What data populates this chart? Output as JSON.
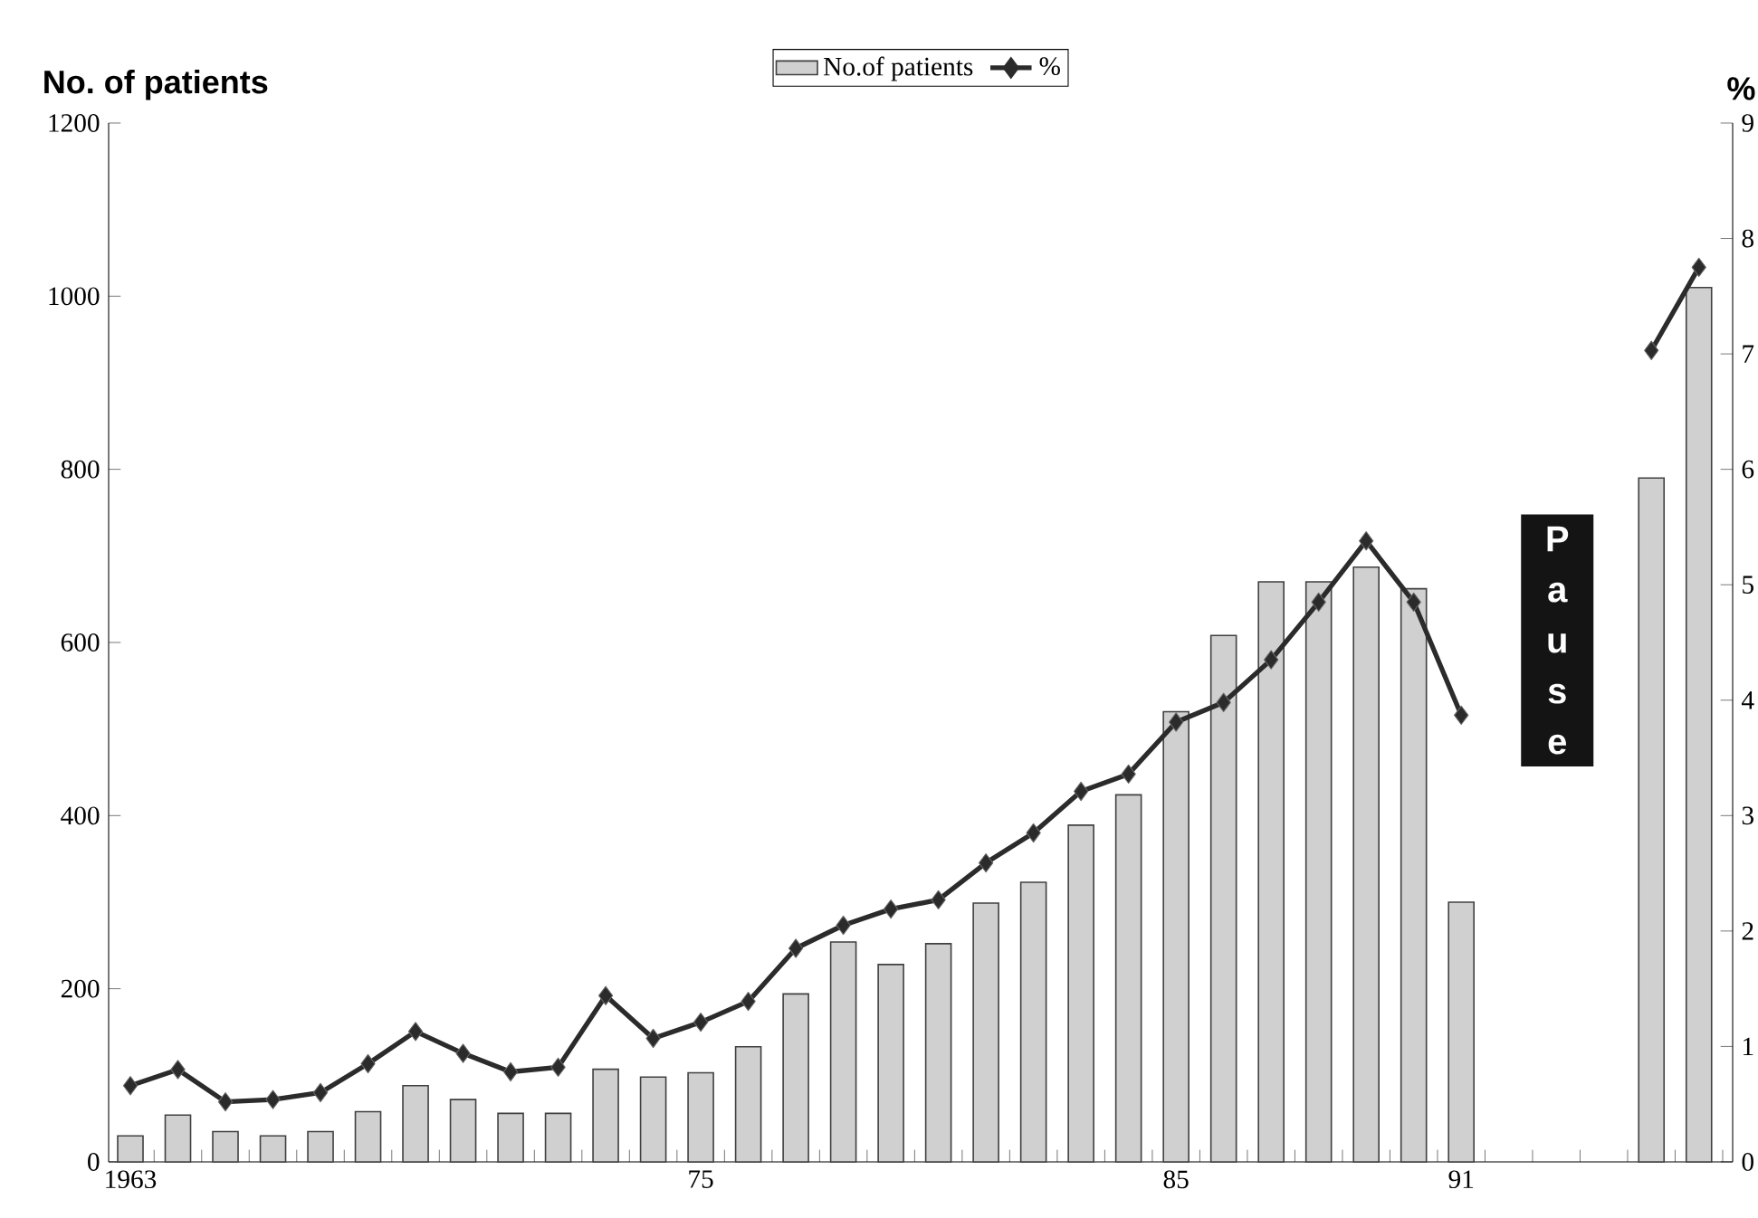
{
  "chart_data": {
    "type": "bar",
    "ylabel": "No. of patients",
    "y2label": "%",
    "categories": [
      "1963",
      null,
      null,
      null,
      null,
      null,
      null,
      null,
      null,
      null,
      null,
      null,
      "75",
      null,
      null,
      null,
      null,
      null,
      null,
      null,
      null,
      null,
      "85",
      null,
      null,
      null,
      null,
      null,
      "91",
      null,
      null,
      null,
      null,
      null
    ],
    "series": [
      {
        "name": "No.of patients",
        "color": "#d0d0d0",
        "values": [
          30,
          54,
          35,
          30,
          35,
          58,
          88,
          72,
          56,
          56,
          107,
          98,
          103,
          133,
          194,
          254,
          228,
          252,
          299,
          323,
          389,
          424,
          520,
          608,
          670,
          670,
          687,
          662,
          300,
          null,
          null,
          null,
          790,
          1010
        ]
      },
      {
        "name": "%",
        "type": "line",
        "axis": "y2",
        "color": "#2b2b2b",
        "values": [
          0.66,
          0.8,
          0.52,
          0.54,
          0.6,
          0.85,
          1.13,
          0.94,
          0.78,
          0.82,
          1.44,
          1.07,
          1.21,
          1.39,
          1.85,
          2.05,
          2.19,
          2.27,
          2.59,
          2.85,
          3.21,
          3.36,
          3.81,
          3.98,
          4.35,
          4.85,
          5.38,
          4.85,
          3.87,
          null,
          null,
          null,
          7.03,
          7.75
        ]
      }
    ],
    "marker": "diamond",
    "legend": "top",
    "ylim": [
      0,
      1200
    ],
    "yticks": [
      0,
      200,
      400,
      600,
      800,
      1000,
      1200
    ],
    "y2lim": [
      0,
      9
    ],
    "y2ticks": [
      0,
      1,
      2,
      3,
      4,
      5,
      6,
      7,
      8,
      9
    ],
    "annotations": [
      "Pause"
    ]
  }
}
